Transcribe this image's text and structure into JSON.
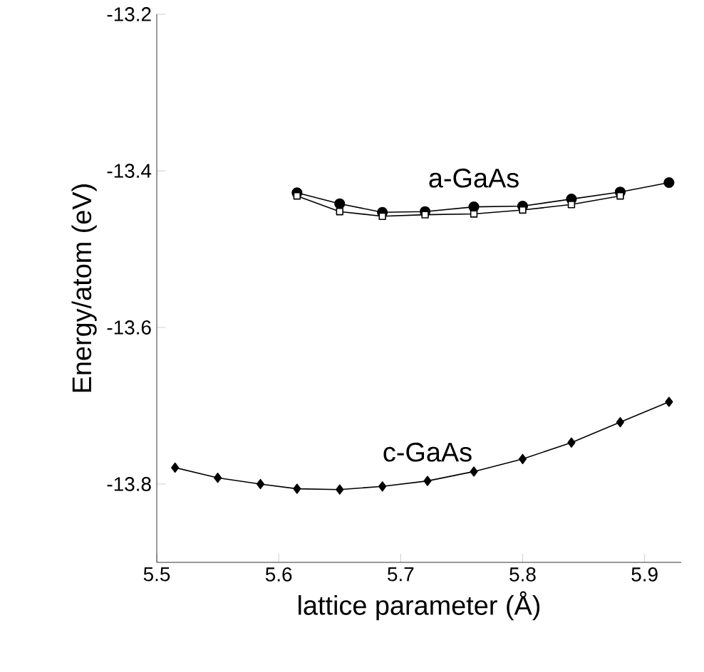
{
  "chart_data": {
    "type": "line",
    "xlabel": "lattice parameter (Å)",
    "ylabel": "Energy/atom (eV)",
    "xlim": [
      5.5,
      5.93
    ],
    "ylim": [
      -13.9,
      -13.2
    ],
    "xticks": [
      5.5,
      5.6,
      5.7,
      5.8,
      5.9
    ],
    "yticks": [
      -13.8,
      -13.6,
      -13.4,
      -13.2
    ],
    "series": [
      {
        "name": "a-GaAs",
        "color": "#000000",
        "marker": "circle",
        "x": [
          5.615,
          5.65,
          5.685,
          5.72,
          5.76,
          5.8,
          5.84,
          5.88,
          5.92
        ],
        "values": [
          -13.428,
          -13.442,
          -13.453,
          -13.452,
          -13.446,
          -13.445,
          -13.436,
          -13.427,
          -13.415
        ]
      },
      {
        "color": "#000000",
        "marker": "square",
        "x": [
          5.615,
          5.65,
          5.685,
          5.72,
          5.76,
          5.8,
          5.84,
          5.88
        ],
        "values": [
          -13.432,
          -13.452,
          -13.458,
          -13.456,
          -13.455,
          -13.45,
          -13.443,
          -13.432
        ]
      },
      {
        "name": "c-GaAs",
        "color": "#000000",
        "marker": "diamond",
        "x": [
          5.515,
          5.55,
          5.585,
          5.615,
          5.65,
          5.685,
          5.722,
          5.76,
          5.8,
          5.84,
          5.88,
          5.92
        ],
        "values": [
          -13.779,
          -13.792,
          -13.8,
          -13.806,
          -13.807,
          -13.803,
          -13.796,
          -13.784,
          -13.768,
          -13.747,
          -13.721,
          -13.695
        ]
      }
    ]
  }
}
